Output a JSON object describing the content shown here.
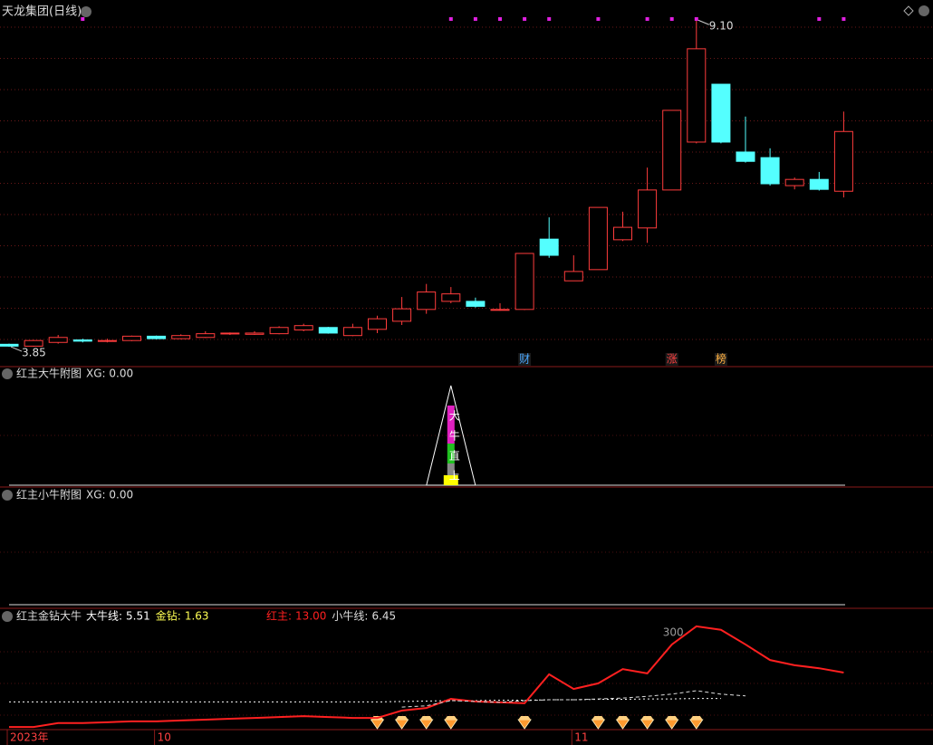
{
  "title": "天龙集团(日线)",
  "panels": [
    {
      "title": "红主大牛附图",
      "readout": "XG: 0.00",
      "signal_index": 18,
      "signal_text": [
        "大",
        "牛",
        "直",
        "上"
      ]
    },
    {
      "title": "红主小牛附图",
      "readout": "XG: 0.00"
    }
  ],
  "chart_data": [
    {
      "type": "candlestick",
      "categories": [
        "2023年",
        null,
        null,
        null,
        null,
        null,
        "10",
        null,
        null,
        null,
        null,
        null,
        null,
        null,
        null,
        null,
        null,
        null,
        null,
        null,
        null,
        null,
        null,
        "11",
        null,
        null,
        null,
        null,
        null,
        null,
        null,
        null,
        null,
        null,
        null
      ],
      "open": [
        3.89,
        3.86,
        3.92,
        3.96,
        3.94,
        3.95,
        4.02,
        3.98,
        4.0,
        4.06,
        4.05,
        4.06,
        4.12,
        4.16,
        4.03,
        4.13,
        4.26,
        4.45,
        4.58,
        4.58,
        4.44,
        4.45,
        5.58,
        4.91,
        5.09,
        5.57,
        5.76,
        6.37,
        7.14,
        8.07,
        6.98,
        6.89,
        6.44,
        6.54,
        6.35
      ],
      "high": [
        3.9,
        3.96,
        4.04,
        3.98,
        3.98,
        4.03,
        4.03,
        4.05,
        4.1,
        4.08,
        4.1,
        4.18,
        4.22,
        4.17,
        4.22,
        4.35,
        4.65,
        4.86,
        4.81,
        4.64,
        4.55,
        5.35,
        5.93,
        5.32,
        6.09,
        6.02,
        6.73,
        7.65,
        9.1,
        8.07,
        7.55,
        7.04,
        6.57,
        6.66,
        7.63
      ],
      "low": [
        3.85,
        3.85,
        3.9,
        3.92,
        3.92,
        3.94,
        3.97,
        3.97,
        3.99,
        4.04,
        4.04,
        4.05,
        4.1,
        4.06,
        4.02,
        4.07,
        4.2,
        4.38,
        4.55,
        4.48,
        4.43,
        4.44,
        5.28,
        4.91,
        5.09,
        5.55,
        5.52,
        6.37,
        7.12,
        7.12,
        6.81,
        6.44,
        6.38,
        6.36,
        6.25
      ],
      "close": [
        3.86,
        3.95,
        4.0,
        3.94,
        3.95,
        4.02,
        3.98,
        4.03,
        4.06,
        4.07,
        4.07,
        4.16,
        4.19,
        4.07,
        4.16,
        4.3,
        4.46,
        4.73,
        4.7,
        4.5,
        4.45,
        5.35,
        5.32,
        5.06,
        6.09,
        5.77,
        6.37,
        7.65,
        8.64,
        7.14,
        6.83,
        6.47,
        6.54,
        6.38,
        7.31
      ],
      "up_color": "#ff3c3c",
      "down_color": "#54ffff",
      "ylim": [
        3.72,
        9.22
      ],
      "annotations": [
        {
          "text": "9.10",
          "index": 28
        },
        {
          "text": "3.85",
          "index": 0
        }
      ],
      "top_markers": [
        3,
        18,
        19,
        20,
        21,
        22,
        24,
        26,
        27,
        28,
        33,
        34
      ],
      "tags": [
        {
          "text": "财",
          "index": 21,
          "color": "#4aa8ff"
        },
        {
          "text": "涨",
          "index": 27,
          "color": "#ff4040"
        },
        {
          "text": "榜",
          "index": 29,
          "color": "#ffb040"
        }
      ]
    },
    {
      "type": "line",
      "title": "红主金钻大牛",
      "ylim": [
        0,
        24.1
      ],
      "series": [
        {
          "name": "大牛线:",
          "readout": "5.51",
          "color": "#ffffff",
          "dash": "2,3",
          "values": [
            6.2,
            6.2,
            6.2,
            6.2,
            6.2,
            6.2,
            6.2,
            6.2,
            6.2,
            6.2,
            6.2,
            6.2,
            6.2,
            6.2,
            6.2,
            6.2,
            6.3,
            6.4,
            6.5,
            6.5,
            6.6,
            6.6,
            6.7,
            6.7,
            6.8,
            6.8,
            6.9,
            6.9,
            7.0,
            7.0,
            null,
            null,
            null,
            null,
            null
          ]
        },
        {
          "name": "金钻:",
          "readout": "1.63",
          "color": "#ffff54",
          "diamonds": [
            15,
            16,
            17,
            18,
            21,
            24,
            25,
            26,
            27,
            28
          ]
        },
        {
          "name": "红主:",
          "readout": "13.00",
          "color": "#ff2020",
          "values": [
            0.4,
            0.4,
            1.3,
            1.3,
            1.5,
            1.7,
            1.7,
            1.9,
            2.1,
            2.3,
            2.5,
            2.7,
            2.9,
            2.7,
            2.5,
            2.5,
            4.2,
            4.8,
            6.9,
            6.3,
            6.1,
            5.9,
            12.6,
            9.2,
            10.5,
            13.8,
            12.8,
            19.5,
            23.7,
            22.9,
            19.5,
            15.9,
            14.7,
            14.0,
            13.0
          ]
        },
        {
          "name": "小牛线:",
          "readout": "6.45",
          "color": "#dddddd",
          "dash": "4,3",
          "values": [
            null,
            null,
            null,
            null,
            null,
            null,
            null,
            null,
            null,
            null,
            null,
            null,
            null,
            null,
            null,
            null,
            5.0,
            5.3,
            6.5,
            6.3,
            6.1,
            6.5,
            6.7,
            6.7,
            6.9,
            7.1,
            7.5,
            8.0,
            8.8,
            8.0,
            7.6,
            null,
            null,
            null,
            null
          ]
        }
      ],
      "annotations": [
        {
          "text": "300",
          "index": 27
        }
      ]
    }
  ]
}
